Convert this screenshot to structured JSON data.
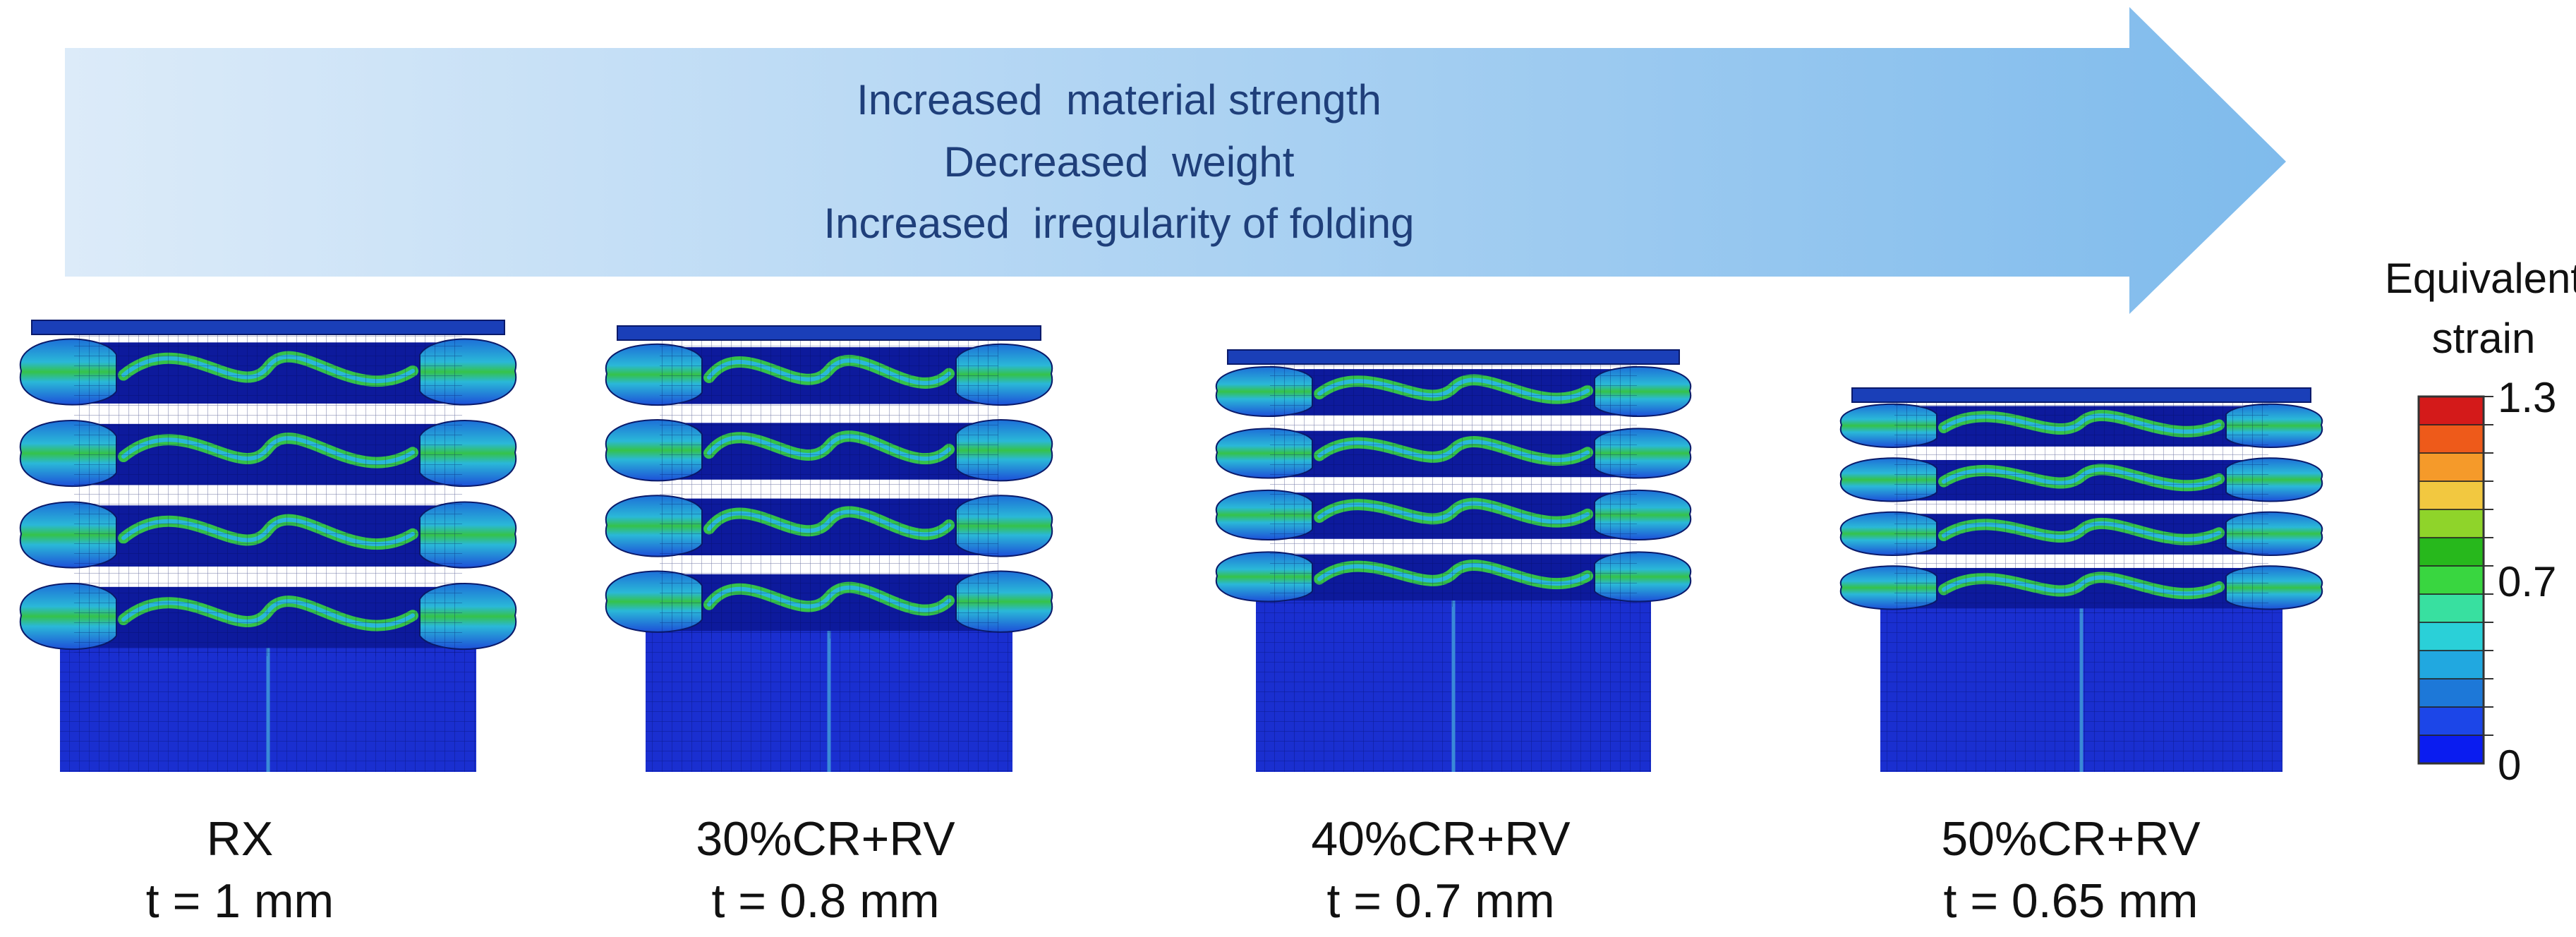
{
  "arrow": {
    "lines": [
      "Increased  material strength",
      "Decreased  weight",
      "Increased  irregularity of folding"
    ],
    "gradient": [
      "#dcebf9",
      "#7fbbec"
    ],
    "text_color": "#1f3f7a"
  },
  "colorbar": {
    "title_line1": "Equivalent",
    "title_line2": "strain",
    "max_label": "1.3",
    "mid_label": "0.7",
    "min_label": "0",
    "levels": [
      "#0a1cf0",
      "#1c46e8",
      "#1d78d8",
      "#21a8e0",
      "#2ad0d8",
      "#38e0a0",
      "#39d640",
      "#27b81c",
      "#8fd42a",
      "#f2c840",
      "#f59a2a",
      "#ee5a1a",
      "#d41a1a"
    ]
  },
  "panels": [
    {
      "id": "rx",
      "label": "RX",
      "thickness": "t = 1 mm",
      "folds": 4
    },
    {
      "id": "cr30",
      "label": "30%CR+RV",
      "thickness": "t = 0.8 mm",
      "folds": 4
    },
    {
      "id": "cr40",
      "label": "40%CR+RV",
      "thickness": "t = 0.7 mm",
      "folds": 4
    },
    {
      "id": "cr50",
      "label": "50%CR+RV",
      "thickness": "t = 0.65 mm",
      "folds": 4
    }
  ],
  "colors": {
    "body_blue": "#1a2fd0",
    "body_dark": "#0d1a9c",
    "fold_green": "#35c24a",
    "fold_cyan": "#2ab8d8"
  }
}
